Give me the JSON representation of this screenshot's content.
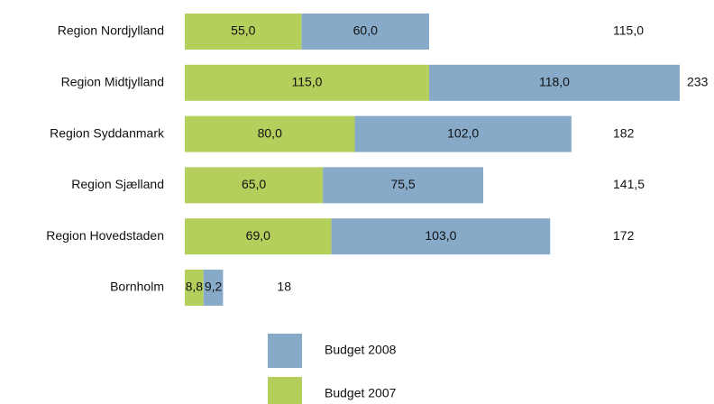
{
  "chart_data": {
    "type": "stacked-bar-horizontal",
    "categories": [
      "Region Nordjylland",
      "Region Midtjylland",
      "Region Syddanmark",
      "Region Sjælland",
      "Region Hovedstaden",
      "Bornholm"
    ],
    "series": [
      {
        "name": "Budget 2007",
        "color": "#b5cf5c",
        "values": [
          55,
          115,
          80,
          65,
          69,
          8.8
        ],
        "value_labels": [
          "55,0",
          "115,0",
          "80,0",
          "65,0",
          "69,0",
          "8,8"
        ]
      },
      {
        "name": "Budget 2008",
        "color": "#86aac8",
        "values": [
          60,
          118,
          102,
          75.5,
          103,
          9.2
        ],
        "value_labels": [
          "60,0",
          "118,0",
          "102,0",
          "75,5",
          "103,0",
          "9,2"
        ]
      }
    ],
    "totals": [
      115,
      233,
      182,
      141.5,
      172,
      18
    ],
    "total_labels": [
      "115,0",
      "233",
      "182",
      "141,5",
      "172",
      "18"
    ]
  }
}
